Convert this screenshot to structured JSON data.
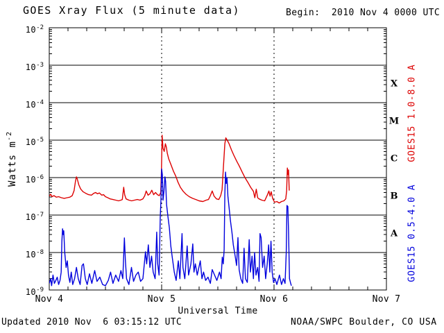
{
  "header": {
    "title": "GOES Xray Flux (5 minute data)",
    "begin_label": "Begin:  2010 Nov 4 0000 UTC"
  },
  "footer": {
    "updated": "Updated 2010 Nov  6 03:15:12 UTC",
    "source": "NOAA/SWPC Boulder, CO USA"
  },
  "colors": {
    "long_channel": "#dd0000",
    "short_channel": "#0000dd",
    "axis": "#000000",
    "background": "#ffffff"
  },
  "chart_data": {
    "type": "line",
    "title": "GOES Xray Flux (5 minute data)",
    "xlabel": "Universal Time",
    "ylabel_base": "Watts m",
    "ylabel_exponent": "-2",
    "x_range_hours": [
      0,
      72
    ],
    "x_ticks": [
      {
        "hour": 0,
        "label": "Nov 4"
      },
      {
        "hour": 24,
        "label": "Nov 5"
      },
      {
        "hour": 48,
        "label": "Nov 6"
      },
      {
        "hour": 72,
        "label": "Nov 7"
      }
    ],
    "x_minor_tick_step_hours": 4,
    "x_gridline_hours": [
      24,
      48
    ],
    "y_top_exponent": -2,
    "y_bottom_exponent": -9,
    "y_tick_exponents": [
      -2,
      -3,
      -4,
      -5,
      -6,
      -7,
      -8,
      -9
    ],
    "y_gridline_exponents": [
      -3,
      -4,
      -5,
      -6,
      -7,
      -8
    ],
    "grid": "solid horizontal decade lines, dotted vertical day lines",
    "legend_position": "rotated labels right of plot",
    "flare_classes": [
      {
        "letter": "X",
        "band_exponents": [
          -4,
          -3
        ]
      },
      {
        "letter": "M",
        "band_exponents": [
          -5,
          -4
        ]
      },
      {
        "letter": "C",
        "band_exponents": [
          -6,
          -5
        ]
      },
      {
        "letter": "B",
        "band_exponents": [
          -7,
          -6
        ]
      },
      {
        "letter": "A",
        "band_exponents": [
          -8,
          -7
        ]
      }
    ],
    "series": [
      {
        "name": "GOES15 1.0-8.0 A",
        "color": "#dd0000",
        "points": [
          [
            0,
            3.2e-07
          ],
          [
            0.3,
            3.6e-07
          ],
          [
            0.6,
            3.1e-07
          ],
          [
            1.0,
            3.3e-07
          ],
          [
            1.5,
            3e-07
          ],
          [
            2.0,
            3.1e-07
          ],
          [
            2.6,
            2.9e-07
          ],
          [
            3.2,
            2.8e-07
          ],
          [
            3.8,
            2.9e-07
          ],
          [
            4.4,
            3e-07
          ],
          [
            4.9,
            3.3e-07
          ],
          [
            5.3,
            4.5e-07
          ],
          [
            5.6,
            8e-07
          ],
          [
            5.8,
            1.05e-06
          ],
          [
            6.0,
            9e-07
          ],
          [
            6.3,
            6.5e-07
          ],
          [
            6.7,
            5e-07
          ],
          [
            7.2,
            4.2e-07
          ],
          [
            7.8,
            3.8e-07
          ],
          [
            8.4,
            3.5e-07
          ],
          [
            9.0,
            3.4e-07
          ],
          [
            9.5,
            3.8e-07
          ],
          [
            9.9,
            4e-07
          ],
          [
            10.3,
            3.7e-07
          ],
          [
            10.7,
            3.9e-07
          ],
          [
            11.2,
            3.4e-07
          ],
          [
            11.6,
            3.5e-07
          ],
          [
            12.0,
            3.1e-07
          ],
          [
            12.5,
            2.9e-07
          ],
          [
            13.0,
            2.7e-07
          ],
          [
            13.6,
            2.6e-07
          ],
          [
            14.2,
            2.5e-07
          ],
          [
            14.8,
            2.4e-07
          ],
          [
            15.3,
            2.5e-07
          ],
          [
            15.6,
            2.6e-07
          ],
          [
            15.9,
            5.5e-07
          ],
          [
            16.1,
            3.5e-07
          ],
          [
            16.4,
            2.7e-07
          ],
          [
            17.0,
            2.5e-07
          ],
          [
            17.6,
            2.4e-07
          ],
          [
            18.2,
            2.5e-07
          ],
          [
            18.8,
            2.6e-07
          ],
          [
            19.4,
            2.5e-07
          ],
          [
            20.0,
            2.7e-07
          ],
          [
            20.4,
            3.3e-07
          ],
          [
            20.7,
            4.4e-07
          ],
          [
            21.1,
            3.4e-07
          ],
          [
            21.5,
            3.7e-07
          ],
          [
            21.9,
            4.6e-07
          ],
          [
            22.3,
            3.5e-07
          ],
          [
            22.7,
            4e-07
          ],
          [
            23.1,
            3.5e-07
          ],
          [
            23.5,
            3.3e-07
          ],
          [
            23.8,
            4e-07
          ],
          [
            23.95,
            1.5e-06
          ],
          [
            24.1,
            1.35e-05
          ],
          [
            24.3,
            6e-06
          ],
          [
            24.55,
            5e-06
          ],
          [
            24.8,
            8e-06
          ],
          [
            25.0,
            6.5e-06
          ],
          [
            25.2,
            4.5e-06
          ],
          [
            25.5,
            3.2e-06
          ],
          [
            26.0,
            2.2e-06
          ],
          [
            26.5,
            1.5e-06
          ],
          [
            27.0,
            1.1e-06
          ],
          [
            27.5,
            7.5e-07
          ],
          [
            28.0,
            5.5e-07
          ],
          [
            28.6,
            4.3e-07
          ],
          [
            29.2,
            3.6e-07
          ],
          [
            29.9,
            3.1e-07
          ],
          [
            30.6,
            2.8e-07
          ],
          [
            31.3,
            2.6e-07
          ],
          [
            32.0,
            2.4e-07
          ],
          [
            32.8,
            2.3e-07
          ],
          [
            33.5,
            2.5e-07
          ],
          [
            34.0,
            2.6e-07
          ],
          [
            34.4,
            3.3e-07
          ],
          [
            34.8,
            4.4e-07
          ],
          [
            35.2,
            3.2e-07
          ],
          [
            35.7,
            2.7e-07
          ],
          [
            36.2,
            2.6e-07
          ],
          [
            36.6,
            3.3e-07
          ],
          [
            36.9,
            4.7e-07
          ],
          [
            37.2,
            2e-06
          ],
          [
            37.5,
            8e-06
          ],
          [
            37.7,
            1.15e-05
          ],
          [
            38.0,
            1e-05
          ],
          [
            38.4,
            8e-06
          ],
          [
            38.9,
            5.5e-06
          ],
          [
            39.4,
            4e-06
          ],
          [
            40.0,
            2.8e-06
          ],
          [
            40.6,
            2e-06
          ],
          [
            41.2,
            1.4e-06
          ],
          [
            41.8,
            1e-06
          ],
          [
            42.4,
            7.5e-07
          ],
          [
            43.0,
            5.5e-07
          ],
          [
            43.6,
            4.3e-07
          ],
          [
            43.9,
            2.9e-07
          ],
          [
            44.2,
            4.9e-07
          ],
          [
            44.5,
            2.9e-07
          ],
          [
            44.8,
            2.7e-07
          ],
          [
            45.4,
            2.5e-07
          ],
          [
            46.0,
            2.4e-07
          ],
          [
            46.6,
            3.5e-07
          ],
          [
            46.9,
            4.4e-07
          ],
          [
            47.15,
            3.2e-07
          ],
          [
            47.4,
            4.2e-07
          ],
          [
            47.7,
            2.8e-07
          ],
          [
            48.1,
            2.2e-07
          ],
          [
            48.6,
            2.3e-07
          ],
          [
            49.1,
            2.1e-07
          ],
          [
            49.6,
            2.3e-07
          ],
          [
            50.1,
            2.4e-07
          ],
          [
            50.5,
            2.7e-07
          ],
          [
            50.7,
            4.5e-07
          ],
          [
            50.85,
            1.8e-06
          ],
          [
            51.0,
            1.2e-06
          ],
          [
            51.1,
            1.6e-06
          ],
          [
            51.25,
            4.5e-07
          ]
        ]
      },
      {
        "name": "GOES15 0.5-4.0 A",
        "color": "#0000dd",
        "points": [
          [
            0,
            1.5e-09
          ],
          [
            0.3,
            2e-09
          ],
          [
            0.5,
            1.3e-09
          ],
          [
            0.8,
            2.5e-09
          ],
          [
            1.1,
            1.5e-09
          ],
          [
            1.4,
            1.8e-09
          ],
          [
            1.7,
            2.2e-09
          ],
          [
            2.0,
            1.4e-09
          ],
          [
            2.3,
            1.8e-09
          ],
          [
            2.55,
            3e-09
          ],
          [
            2.7,
            2e-08
          ],
          [
            2.85,
            4.3e-08
          ],
          [
            3.0,
            3e-08
          ],
          [
            3.1,
            3.8e-08
          ],
          [
            3.3,
            1e-08
          ],
          [
            3.6,
            4e-09
          ],
          [
            3.85,
            6e-09
          ],
          [
            4.1,
            2.5e-09
          ],
          [
            4.4,
            1.6e-09
          ],
          [
            4.7,
            3e-09
          ],
          [
            5.0,
            1.4e-09
          ],
          [
            5.4,
            2e-09
          ],
          [
            5.8,
            4e-09
          ],
          [
            6.2,
            2e-09
          ],
          [
            6.6,
            1.4e-09
          ],
          [
            7.0,
            4.5e-09
          ],
          [
            7.3,
            5e-09
          ],
          [
            7.7,
            2e-09
          ],
          [
            8.1,
            1.4e-09
          ],
          [
            8.6,
            2.7e-09
          ],
          [
            9.1,
            1.5e-09
          ],
          [
            9.7,
            3.3e-09
          ],
          [
            10.2,
            1.7e-09
          ],
          [
            10.8,
            2.2e-09
          ],
          [
            11.4,
            1.4e-09
          ],
          [
            12.0,
            1.3e-09
          ],
          [
            12.6,
            1.8e-09
          ],
          [
            13.1,
            3e-09
          ],
          [
            13.6,
            1.5e-09
          ],
          [
            14.2,
            2.5e-09
          ],
          [
            14.8,
            1.7e-09
          ],
          [
            15.3,
            3.3e-09
          ],
          [
            15.7,
            2e-09
          ],
          [
            16.05,
            2.45e-08
          ],
          [
            16.25,
            6.3e-09
          ],
          [
            16.5,
            2e-09
          ],
          [
            17.0,
            1.4e-09
          ],
          [
            17.55,
            4e-09
          ],
          [
            18.0,
            1.7e-09
          ],
          [
            18.5,
            2.5e-09
          ],
          [
            19.0,
            3e-09
          ],
          [
            19.5,
            1.7e-09
          ],
          [
            20.0,
            2e-09
          ],
          [
            20.55,
            1.05e-08
          ],
          [
            20.8,
            5e-09
          ],
          [
            21.15,
            1.6e-08
          ],
          [
            21.5,
            4e-09
          ],
          [
            21.85,
            8e-09
          ],
          [
            22.2,
            3e-09
          ],
          [
            22.6,
            2e-09
          ],
          [
            22.95,
            3.5e-08
          ],
          [
            23.15,
            5e-09
          ],
          [
            23.45,
            2.5e-09
          ],
          [
            23.7,
            9e-08
          ],
          [
            23.85,
            2.5e-07
          ],
          [
            24.0,
            1.7e-06
          ],
          [
            24.15,
            1.2e-06
          ],
          [
            24.3,
            2.5e-07
          ],
          [
            24.5,
            4.5e-07
          ],
          [
            24.7,
            1.05e-06
          ],
          [
            24.85,
            8e-07
          ],
          [
            25.05,
            1.9e-07
          ],
          [
            25.35,
            9e-08
          ],
          [
            25.65,
            4.6e-08
          ],
          [
            25.95,
            1.5e-08
          ],
          [
            26.3,
            7e-09
          ],
          [
            26.7,
            3e-09
          ],
          [
            27.1,
            1.8e-09
          ],
          [
            27.55,
            6e-09
          ],
          [
            27.9,
            2e-09
          ],
          [
            28.35,
            3.2e-08
          ],
          [
            28.55,
            4e-09
          ],
          [
            28.95,
            2e-09
          ],
          [
            29.45,
            1.5e-08
          ],
          [
            29.75,
            2.5e-09
          ],
          [
            30.25,
            5e-09
          ],
          [
            30.65,
            1.7e-08
          ],
          [
            30.9,
            3e-09
          ],
          [
            31.2,
            5e-09
          ],
          [
            31.6,
            2.5e-09
          ],
          [
            32.25,
            6e-09
          ],
          [
            32.6,
            2e-09
          ],
          [
            32.95,
            3e-09
          ],
          [
            33.4,
            1.8e-09
          ],
          [
            33.9,
            2.2e-09
          ],
          [
            34.4,
            1.5e-09
          ],
          [
            34.8,
            3.5e-09
          ],
          [
            35.3,
            2.5e-09
          ],
          [
            35.8,
            1.8e-09
          ],
          [
            36.35,
            3e-09
          ],
          [
            36.7,
            2e-09
          ],
          [
            36.95,
            7.5e-09
          ],
          [
            37.15,
            5e-09
          ],
          [
            37.35,
            1.2e-08
          ],
          [
            37.5,
            3.5e-07
          ],
          [
            37.65,
            1.4e-06
          ],
          [
            37.8,
            7e-07
          ],
          [
            37.95,
            1e-06
          ],
          [
            38.15,
            3.2e-07
          ],
          [
            38.4,
            1.6e-07
          ],
          [
            38.7,
            7e-08
          ],
          [
            39.0,
            3.5e-08
          ],
          [
            39.3,
            1.6e-08
          ],
          [
            39.7,
            8e-09
          ],
          [
            40.0,
            4.5e-09
          ],
          [
            40.3,
            2.5e-08
          ],
          [
            40.55,
            3.5e-09
          ],
          [
            40.9,
            2e-09
          ],
          [
            41.3,
            1.5e-09
          ],
          [
            41.6,
            1.3e-08
          ],
          [
            41.9,
            2e-09
          ],
          [
            42.3,
            1.6e-09
          ],
          [
            42.7,
            2.2e-08
          ],
          [
            42.95,
            3e-09
          ],
          [
            43.3,
            8e-09
          ],
          [
            43.6,
            2e-09
          ],
          [
            43.85,
            1e-08
          ],
          [
            44.15,
            2.5e-09
          ],
          [
            44.5,
            4e-09
          ],
          [
            44.8,
            1.7e-09
          ],
          [
            45.0,
            3.2e-08
          ],
          [
            45.25,
            2.5e-08
          ],
          [
            45.55,
            4e-09
          ],
          [
            45.9,
            8e-09
          ],
          [
            46.2,
            2e-09
          ],
          [
            46.55,
            5e-09
          ],
          [
            46.85,
            1.6e-08
          ],
          [
            47.1,
            3e-09
          ],
          [
            47.35,
            2e-08
          ],
          [
            47.6,
            3e-09
          ],
          [
            47.9,
            1.6e-09
          ],
          [
            48.2,
            2e-09
          ],
          [
            48.6,
            1.4e-09
          ],
          [
            49.15,
            2.5e-09
          ],
          [
            49.6,
            1.4e-09
          ],
          [
            50.0,
            2e-09
          ],
          [
            50.35,
            1.5e-09
          ],
          [
            50.6,
            1e-08
          ],
          [
            50.75,
            1.8e-07
          ],
          [
            50.95,
            1.7e-07
          ],
          [
            51.1,
            3.7e-08
          ],
          [
            51.3,
            2e-09
          ],
          [
            51.55,
            1.5e-09
          ],
          [
            51.7,
            1.3e-09
          ]
        ]
      }
    ]
  }
}
